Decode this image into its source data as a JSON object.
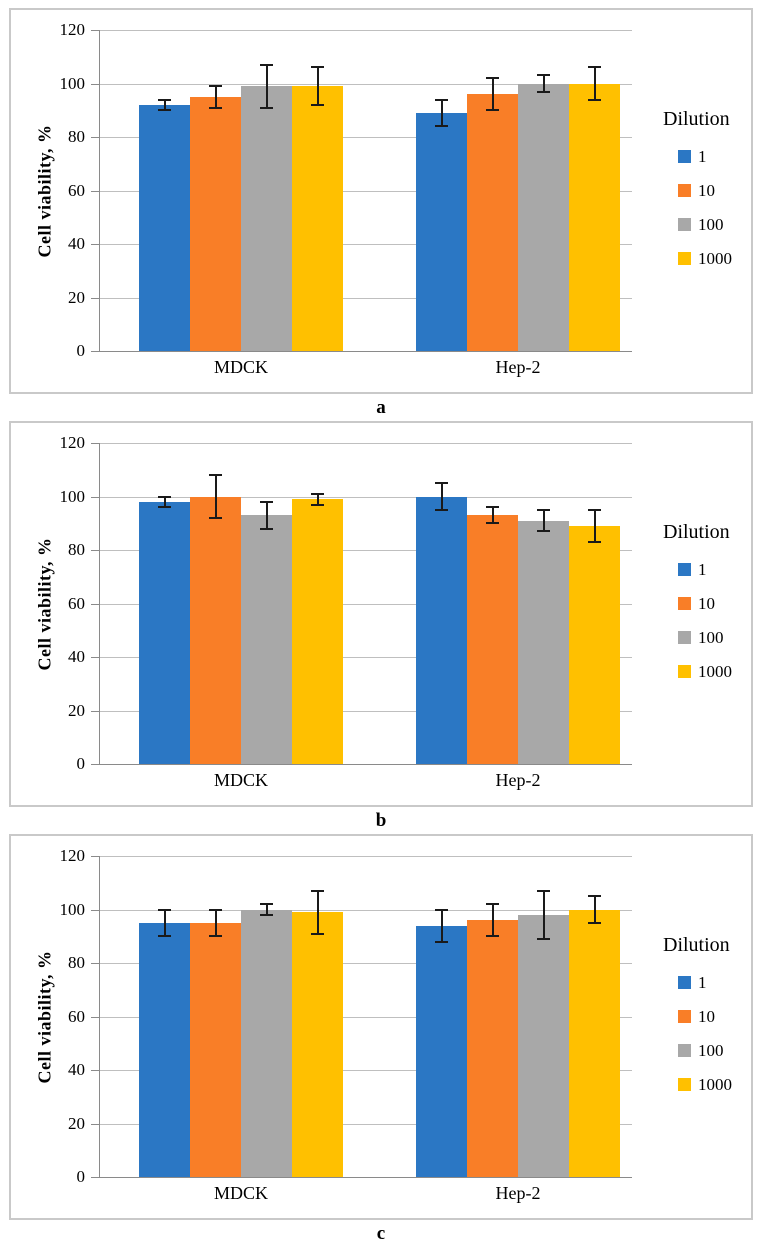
{
  "figure": {
    "panel_captions": [
      "a",
      "b",
      "c"
    ]
  },
  "colors": {
    "bar_blue": "#2B77C4",
    "bar_orange": "#F97E27",
    "bar_gray": "#A8A8A8",
    "bar_yellow": "#FFC000",
    "gridline": "#BFBFBF",
    "axis_line": "#8A8A8A",
    "error_bar": "#1A1A1A",
    "panel_border": "#C9C9C9"
  },
  "chart_data": [
    {
      "type": "bar",
      "panel_label": "a",
      "ylabel": "Cell viability, %",
      "ylim": [
        0,
        120
      ],
      "yticks": [
        0,
        20,
        40,
        60,
        80,
        100,
        120
      ],
      "grid": "horizontal",
      "legend_title": "Dilution",
      "legend_position": "right",
      "categories": [
        "MDCK",
        "Hep-2"
      ],
      "series": [
        {
          "name": "1",
          "color": "#2B77C4",
          "values": [
            92,
            89
          ],
          "errors": [
            2,
            5
          ]
        },
        {
          "name": "10",
          "color": "#F97E27",
          "values": [
            95,
            96
          ],
          "errors": [
            4,
            6
          ]
        },
        {
          "name": "100",
          "color": "#A8A8A8",
          "values": [
            99,
            100
          ],
          "errors": [
            8,
            3
          ]
        },
        {
          "name": "1000",
          "color": "#FFC000",
          "values": [
            99,
            100
          ],
          "errors": [
            7,
            6
          ]
        }
      ]
    },
    {
      "type": "bar",
      "panel_label": "b",
      "ylabel": "Cell viability, %",
      "ylim": [
        0,
        120
      ],
      "yticks": [
        0,
        20,
        40,
        60,
        80,
        100,
        120
      ],
      "grid": "horizontal",
      "legend_title": "Dilution",
      "legend_position": "right",
      "categories": [
        "MDCK",
        "Hep-2"
      ],
      "series": [
        {
          "name": "1",
          "color": "#2B77C4",
          "values": [
            98,
            100
          ],
          "errors": [
            2,
            5
          ]
        },
        {
          "name": "10",
          "color": "#F97E27",
          "values": [
            100,
            93
          ],
          "errors": [
            8,
            3
          ]
        },
        {
          "name": "100",
          "color": "#A8A8A8",
          "values": [
            93,
            91
          ],
          "errors": [
            5,
            4
          ]
        },
        {
          "name": "1000",
          "color": "#FFC000",
          "values": [
            99,
            89
          ],
          "errors": [
            2,
            6
          ]
        }
      ]
    },
    {
      "type": "bar",
      "panel_label": "c",
      "ylabel": "Cell viability, %",
      "ylim": [
        0,
        120
      ],
      "yticks": [
        0,
        20,
        40,
        60,
        80,
        100,
        120
      ],
      "grid": "horizontal",
      "legend_title": "Dilution",
      "legend_position": "right",
      "categories": [
        "MDCK",
        "Hep-2"
      ],
      "series": [
        {
          "name": "1",
          "color": "#2B77C4",
          "values": [
            95,
            94
          ],
          "errors": [
            5,
            6
          ]
        },
        {
          "name": "10",
          "color": "#F97E27",
          "values": [
            95,
            96
          ],
          "errors": [
            5,
            6
          ]
        },
        {
          "name": "100",
          "color": "#A8A8A8",
          "values": [
            100,
            98
          ],
          "errors": [
            2,
            9
          ]
        },
        {
          "name": "1000",
          "color": "#FFC000",
          "values": [
            99,
            100
          ],
          "errors": [
            8,
            5
          ]
        }
      ]
    }
  ]
}
